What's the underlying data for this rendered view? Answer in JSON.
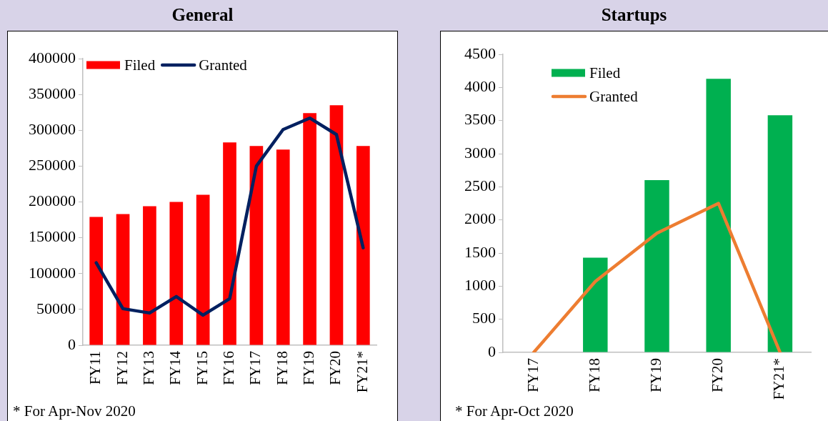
{
  "chart_data": [
    {
      "type": "bar",
      "title": "General",
      "categories": [
        "FY11",
        "FY12",
        "FY13",
        "FY14",
        "FY15",
        "FY16",
        "FY17",
        "FY18",
        "FY19",
        "FY20",
        "FY21*"
      ],
      "series": [
        {
          "name": "Filed",
          "color": "#ff0000",
          "values": [
            179000,
            183000,
            194000,
            200000,
            210000,
            283000,
            278000,
            273000,
            324000,
            335000,
            278000
          ]
        },
        {
          "name": "Granted",
          "type": "line",
          "color": "#002060",
          "values": [
            115000,
            51000,
            45000,
            68000,
            42000,
            65000,
            250000,
            301000,
            317000,
            294000,
            136000
          ]
        }
      ],
      "ylim": [
        0,
        400000
      ],
      "yticks": [
        0,
        50000,
        100000,
        150000,
        200000,
        250000,
        300000,
        350000,
        400000
      ],
      "grid": false,
      "legend": "top left",
      "annotations": [
        "* For Apr-Nov 2020"
      ]
    },
    {
      "type": "bar",
      "title": "Startups",
      "categories": [
        "FY17",
        "FY18",
        "FY19",
        "FY20",
        "FY21*"
      ],
      "series": [
        {
          "name": "Filed",
          "color": "#00b050",
          "values": [
            null,
            1430,
            2600,
            4130,
            3580
          ]
        },
        {
          "name": "Granted",
          "type": "line",
          "color": "#ed7d31",
          "values": [
            0,
            1070,
            1800,
            2250,
            0
          ]
        }
      ],
      "ylim": [
        0,
        4500
      ],
      "yticks": [
        0,
        500,
        1000,
        1500,
        2000,
        2500,
        3000,
        3500,
        4000,
        4500
      ],
      "grid": false,
      "legend": "top left",
      "annotations": [
        "* For Apr-Oct 2020"
      ]
    }
  ]
}
